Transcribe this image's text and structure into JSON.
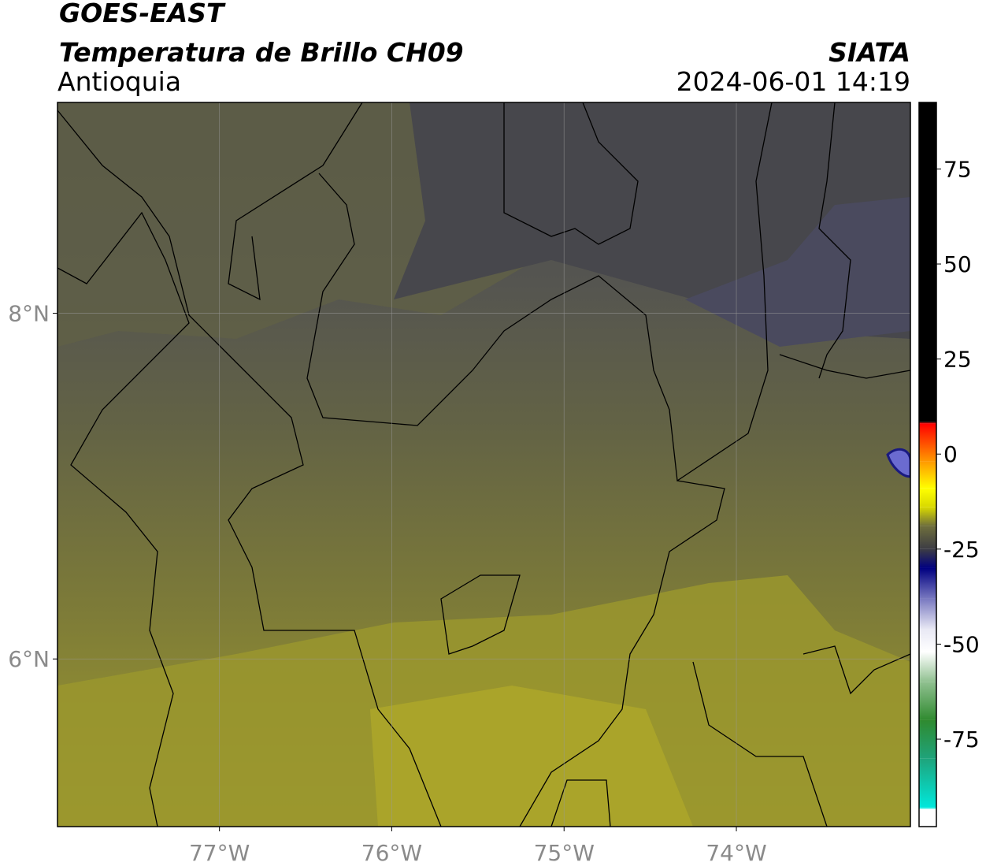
{
  "header": {
    "title": "GOES-EAST",
    "subtitle": "Temperatura de Brillo CH09",
    "region": "Antioquia",
    "source": "SIATA",
    "datetime": "2024-06-01 14:19"
  },
  "map": {
    "xlim": [
      -77.94,
      -72.99
    ],
    "ylim": [
      5.03,
      9.22
    ],
    "xticks": [
      {
        "value": -77,
        "label": "77°W"
      },
      {
        "value": -76,
        "label": "76°W"
      },
      {
        "value": -75,
        "label": "75°W"
      },
      {
        "value": -74,
        "label": "74°W"
      }
    ],
    "yticks": [
      {
        "value": 6,
        "label": "6°N"
      },
      {
        "value": 8,
        "label": "8°N"
      }
    ],
    "grid": true
  },
  "colorbar": {
    "lim": [
      -98,
      92.5
    ],
    "ticks": [
      -75,
      -50,
      -25,
      0,
      25,
      50,
      75
    ],
    "colors": [
      {
        "value": -98,
        "color": "#ffffff"
      },
      {
        "value": -93.5,
        "color": "#ffffff"
      },
      {
        "value": -93,
        "color": "#00e8dc"
      },
      {
        "value": -80,
        "color": "#1fa37a"
      },
      {
        "value": -70,
        "color": "#2f8a2f"
      },
      {
        "value": -60,
        "color": "#8fc08f"
      },
      {
        "value": -52,
        "color": "#ffffff"
      },
      {
        "value": -46,
        "color": "#e8e8f4"
      },
      {
        "value": -38,
        "color": "#7878c0"
      },
      {
        "value": -30,
        "color": "#000080"
      },
      {
        "value": -25,
        "color": "#3c3c44"
      },
      {
        "value": -19,
        "color": "#6e6e3c"
      },
      {
        "value": -14,
        "color": "#d8d800"
      },
      {
        "value": -9,
        "color": "#ffff00"
      },
      {
        "value": -2,
        "color": "#ff9a00"
      },
      {
        "value": 8,
        "color": "#ff0000"
      },
      {
        "value": 8.5,
        "color": "#000000"
      },
      {
        "value": 92.5,
        "color": "#000000"
      }
    ]
  }
}
